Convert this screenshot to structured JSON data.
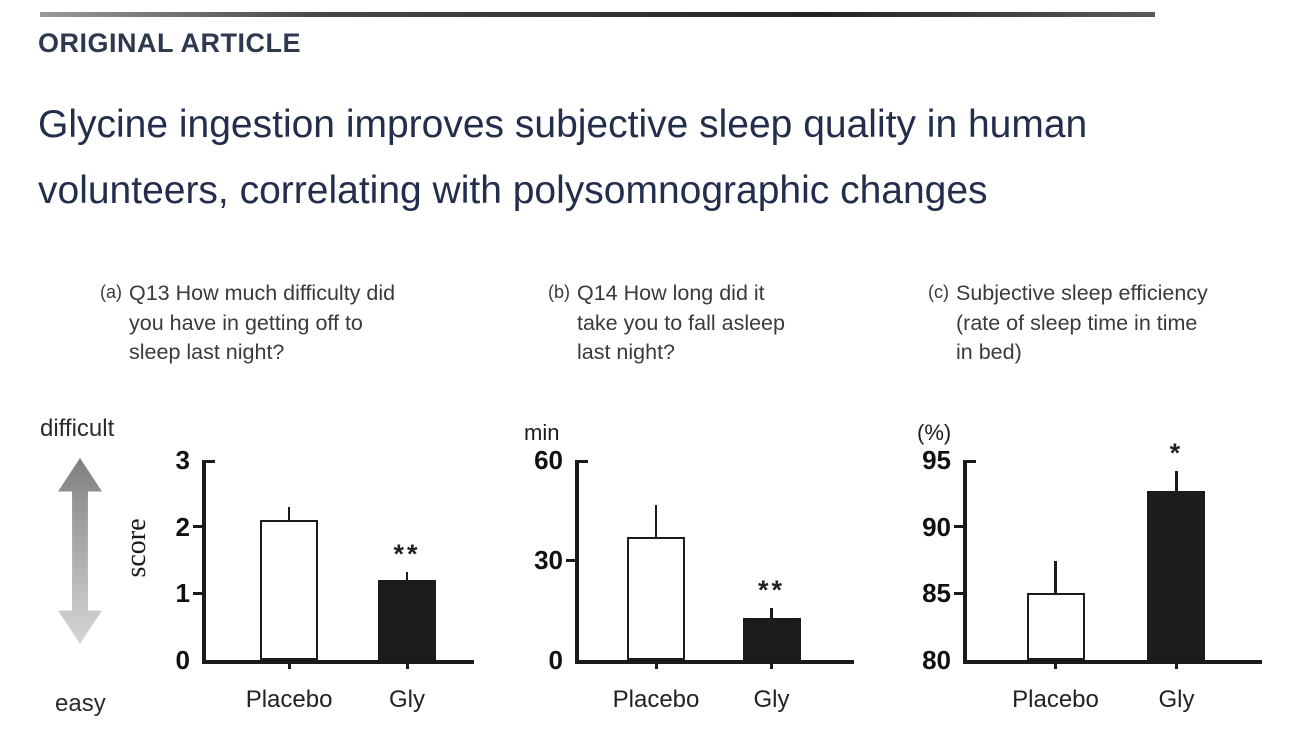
{
  "header": {
    "kicker": "ORIGINAL ARTICLE",
    "title_lines": [
      "Glycine ingestion improves subjective sleep quality in human",
      "volunteers, correlating with polysomnographic changes"
    ]
  },
  "chart_data": [
    {
      "type": "bar",
      "panel": "(a)",
      "caption_lines": [
        "Q13 How much difficulty did",
        "you have in getting off to",
        "sleep last night?"
      ],
      "ylabel": "score",
      "unit": "",
      "ylim": [
        0,
        3
      ],
      "yticks": [
        0,
        1,
        2,
        3
      ],
      "categories": [
        "Placebo",
        "Gly"
      ],
      "values": [
        2.1,
        1.2
      ],
      "errors_up": [
        0.2,
        0.12
      ],
      "significance": [
        "",
        "**"
      ],
      "bar_colors": [
        "#ffffff",
        "#1c1c1c"
      ],
      "annotations": {
        "top": "difficult",
        "bottom": "easy"
      }
    },
    {
      "type": "bar",
      "panel": "(b)",
      "caption_lines": [
        "Q14 How long did it",
        "take you to fall asleep",
        "last night?"
      ],
      "ylabel": "",
      "unit": "min",
      "ylim": [
        0,
        60
      ],
      "yticks": [
        0,
        30,
        60
      ],
      "categories": [
        "Placebo",
        "Gly"
      ],
      "values": [
        37,
        12.5
      ],
      "errors_up": [
        9.5,
        3
      ],
      "significance": [
        "",
        "**"
      ],
      "bar_colors": [
        "#ffffff",
        "#1c1c1c"
      ]
    },
    {
      "type": "bar",
      "panel": "(c)",
      "caption_lines": [
        "Subjective sleep efficiency",
        "(rate of sleep time in time",
        "in bed)"
      ],
      "ylabel": "",
      "unit": "(%)",
      "ylim": [
        80,
        95
      ],
      "yticks": [
        80,
        85,
        90,
        95
      ],
      "categories": [
        "Placebo",
        "Gly"
      ],
      "values": [
        85,
        92.7
      ],
      "errors_up": [
        2.4,
        1.5
      ],
      "significance": [
        "",
        "*"
      ],
      "bar_colors": [
        "#ffffff",
        "#1c1c1c"
      ]
    }
  ],
  "colors": {
    "ink": "#1b1b1b",
    "title": "#232e4d",
    "caption": "#3a3a3a"
  }
}
